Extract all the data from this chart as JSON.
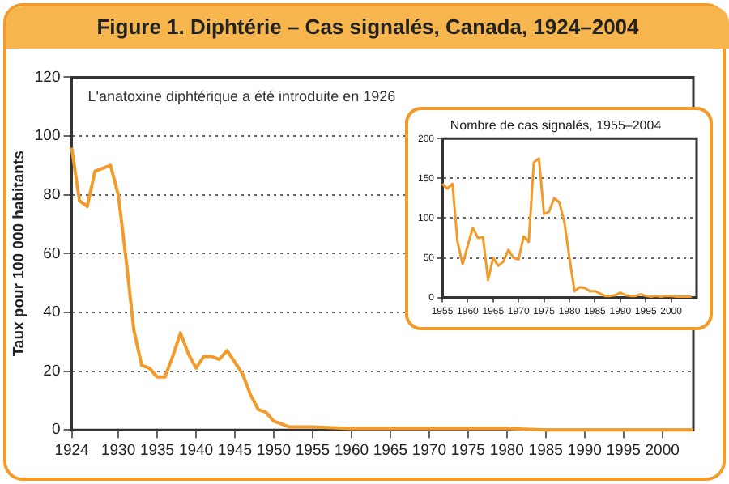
{
  "chart_data": [
    {
      "type": "line",
      "title": "Figure 1. Diphtérie – Cas signalés, Canada, 1924–2004",
      "ylabel": "Taux pour 100 000 habitants",
      "annotations": [
        "L'anatoxine diphtérique a été introduite en 1926"
      ],
      "x": [
        1924,
        1925,
        1926,
        1927,
        1928,
        1929,
        1930,
        1931,
        1932,
        1933,
        1934,
        1935,
        1936,
        1937,
        1938,
        1939,
        1940,
        1941,
        1942,
        1943,
        1944,
        1945,
        1946,
        1947,
        1948,
        1949,
        1950,
        1951,
        1952,
        1953,
        1954,
        1955,
        1960,
        1965,
        1970,
        1974,
        1980,
        1985,
        1990,
        1995,
        2000,
        2004
      ],
      "values": [
        96,
        78,
        76,
        88,
        89,
        90,
        80,
        58,
        34,
        22,
        21,
        18,
        18,
        25,
        33,
        26,
        21,
        25,
        25,
        24,
        27,
        23,
        19,
        12,
        7,
        6,
        3,
        2,
        1,
        1,
        1,
        1,
        0.5,
        0.5,
        0.5,
        0.5,
        0.5,
        0,
        0,
        0,
        0,
        0
      ],
      "color": "#f29b2a",
      "xlim": [
        1924,
        2004
      ],
      "xticks": [
        1924,
        1930,
        1935,
        1940,
        1945,
        1950,
        1955,
        1960,
        1965,
        1970,
        1975,
        1980,
        1985,
        1990,
        1995,
        2000
      ],
      "ylim": [
        0,
        120
      ],
      "yticks": [
        0,
        20,
        40,
        60,
        80,
        100,
        120
      ],
      "grid": "y",
      "legend": false,
      "marker": "none",
      "line_style": "solid"
    },
    {
      "type": "line",
      "title": "Nombre de cas signalés, 1955–2004",
      "x": [
        1955,
        1956,
        1957,
        1958,
        1959,
        1960,
        1961,
        1962,
        1963,
        1964,
        1965,
        1966,
        1967,
        1968,
        1969,
        1970,
        1971,
        1972,
        1973,
        1974,
        1975,
        1976,
        1977,
        1978,
        1979,
        1980,
        1981,
        1982,
        1983,
        1984,
        1985,
        1986,
        1987,
        1988,
        1989,
        1990,
        1991,
        1992,
        1993,
        1994,
        1995,
        1996,
        1997,
        1998,
        1999,
        2000,
        2001,
        2002,
        2003,
        2004
      ],
      "values": [
        143,
        137,
        143,
        70,
        42,
        65,
        88,
        75,
        76,
        22,
        50,
        40,
        45,
        60,
        50,
        48,
        77,
        70,
        170,
        175,
        105,
        108,
        125,
        120,
        95,
        50,
        8,
        13,
        12,
        8,
        8,
        5,
        2,
        2,
        3,
        6,
        3,
        2,
        2,
        4,
        2,
        1,
        2,
        1,
        2,
        2,
        1,
        1,
        1,
        1
      ],
      "color": "#f29b2a",
      "xlim": [
        1955,
        2005
      ],
      "xticks": [
        1955,
        1960,
        1965,
        1970,
        1975,
        1980,
        1985,
        1990,
        1995,
        2000
      ],
      "ylim": [
        0,
        200
      ],
      "yticks": [
        0,
        50,
        100,
        150,
        200
      ],
      "grid": "y",
      "legend": false,
      "marker": "none",
      "line_style": "solid"
    }
  ]
}
